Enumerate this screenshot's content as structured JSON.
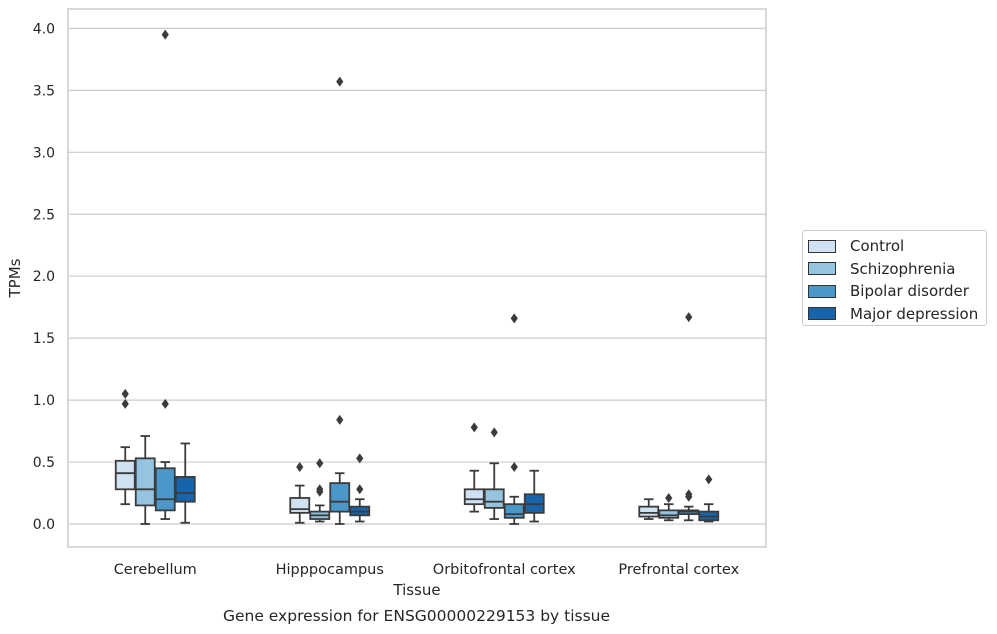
{
  "chart_data": {
    "type": "box",
    "xlabel": "Tissue",
    "ylabel": "TPMs",
    "caption": "Gene expression for ENSG00000229153 by tissue",
    "ylim": [
      -0.19,
      4.16
    ],
    "yticks": [
      "0.0",
      "0.5",
      "1.0",
      "1.5",
      "2.0",
      "2.5",
      "3.0",
      "3.5",
      "4.0"
    ],
    "ytick_values": [
      0,
      0.5,
      1.0,
      1.5,
      2.0,
      2.5,
      3.0,
      3.5,
      4.0
    ],
    "grid": "horizontal",
    "legend_position": "right",
    "categories": [
      "Cerebellum",
      "Hipppocampus",
      "Orbitofrontal cortex",
      "Prefrontal cortex"
    ],
    "series": [
      {
        "name": "Control",
        "color": "#d0e1f2",
        "boxes": [
          {
            "whisker_low": 0.16,
            "q1": 0.28,
            "median": 0.41,
            "q3": 0.51,
            "whisker_high": 0.62,
            "outliers": [
              1.05,
              0.97
            ]
          },
          {
            "whisker_low": 0.01,
            "q1": 0.09,
            "median": 0.12,
            "q3": 0.21,
            "whisker_high": 0.31,
            "outliers": [
              0.46
            ]
          },
          {
            "whisker_low": 0.1,
            "q1": 0.16,
            "median": 0.2,
            "q3": 0.28,
            "whisker_high": 0.43,
            "outliers": [
              0.78
            ]
          },
          {
            "whisker_low": 0.04,
            "q1": 0.06,
            "median": 0.09,
            "q3": 0.14,
            "whisker_high": 0.2,
            "outliers": []
          }
        ]
      },
      {
        "name": "Schizophrenia",
        "color": "#94c4df",
        "boxes": [
          {
            "whisker_low": 0.0,
            "q1": 0.15,
            "median": 0.28,
            "q3": 0.53,
            "whisker_high": 0.71,
            "outliers": []
          },
          {
            "whisker_low": 0.02,
            "q1": 0.04,
            "median": 0.07,
            "q3": 0.1,
            "whisker_high": 0.15,
            "outliers": [
              0.49,
              0.28,
              0.26
            ]
          },
          {
            "whisker_low": 0.04,
            "q1": 0.13,
            "median": 0.18,
            "q3": 0.28,
            "whisker_high": 0.49,
            "outliers": [
              0.74
            ]
          },
          {
            "whisker_low": 0.03,
            "q1": 0.05,
            "median": 0.07,
            "q3": 0.11,
            "whisker_high": 0.16,
            "outliers": [
              0.21
            ]
          }
        ]
      },
      {
        "name": "Bipolar disorder",
        "color": "#4a98c9",
        "boxes": [
          {
            "whisker_low": 0.04,
            "q1": 0.11,
            "median": 0.2,
            "q3": 0.45,
            "whisker_high": 0.5,
            "outliers": [
              0.97,
              3.95
            ]
          },
          {
            "whisker_low": 0.0,
            "q1": 0.1,
            "median": 0.18,
            "q3": 0.33,
            "whisker_high": 0.41,
            "outliers": [
              0.84,
              3.57
            ]
          },
          {
            "whisker_low": 0.0,
            "q1": 0.05,
            "median": 0.08,
            "q3": 0.16,
            "whisker_high": 0.22,
            "outliers": [
              0.46,
              1.66
            ]
          },
          {
            "whisker_low": 0.03,
            "q1": 0.08,
            "median": 0.1,
            "q3": 0.11,
            "whisker_high": 0.14,
            "outliers": [
              0.24,
              0.22,
              1.67
            ]
          }
        ]
      },
      {
        "name": "Major depression",
        "color": "#1764ab",
        "boxes": [
          {
            "whisker_low": 0.01,
            "q1": 0.18,
            "median": 0.25,
            "q3": 0.38,
            "whisker_high": 0.65,
            "outliers": []
          },
          {
            "whisker_low": 0.02,
            "q1": 0.07,
            "median": 0.1,
            "q3": 0.14,
            "whisker_high": 0.2,
            "outliers": [
              0.53,
              0.28
            ]
          },
          {
            "whisker_low": 0.02,
            "q1": 0.09,
            "median": 0.16,
            "q3": 0.24,
            "whisker_high": 0.43,
            "outliers": []
          },
          {
            "whisker_low": 0.02,
            "q1": 0.03,
            "median": 0.06,
            "q3": 0.1,
            "whisker_high": 0.16,
            "outliers": [
              0.36
            ]
          }
        ]
      }
    ]
  }
}
